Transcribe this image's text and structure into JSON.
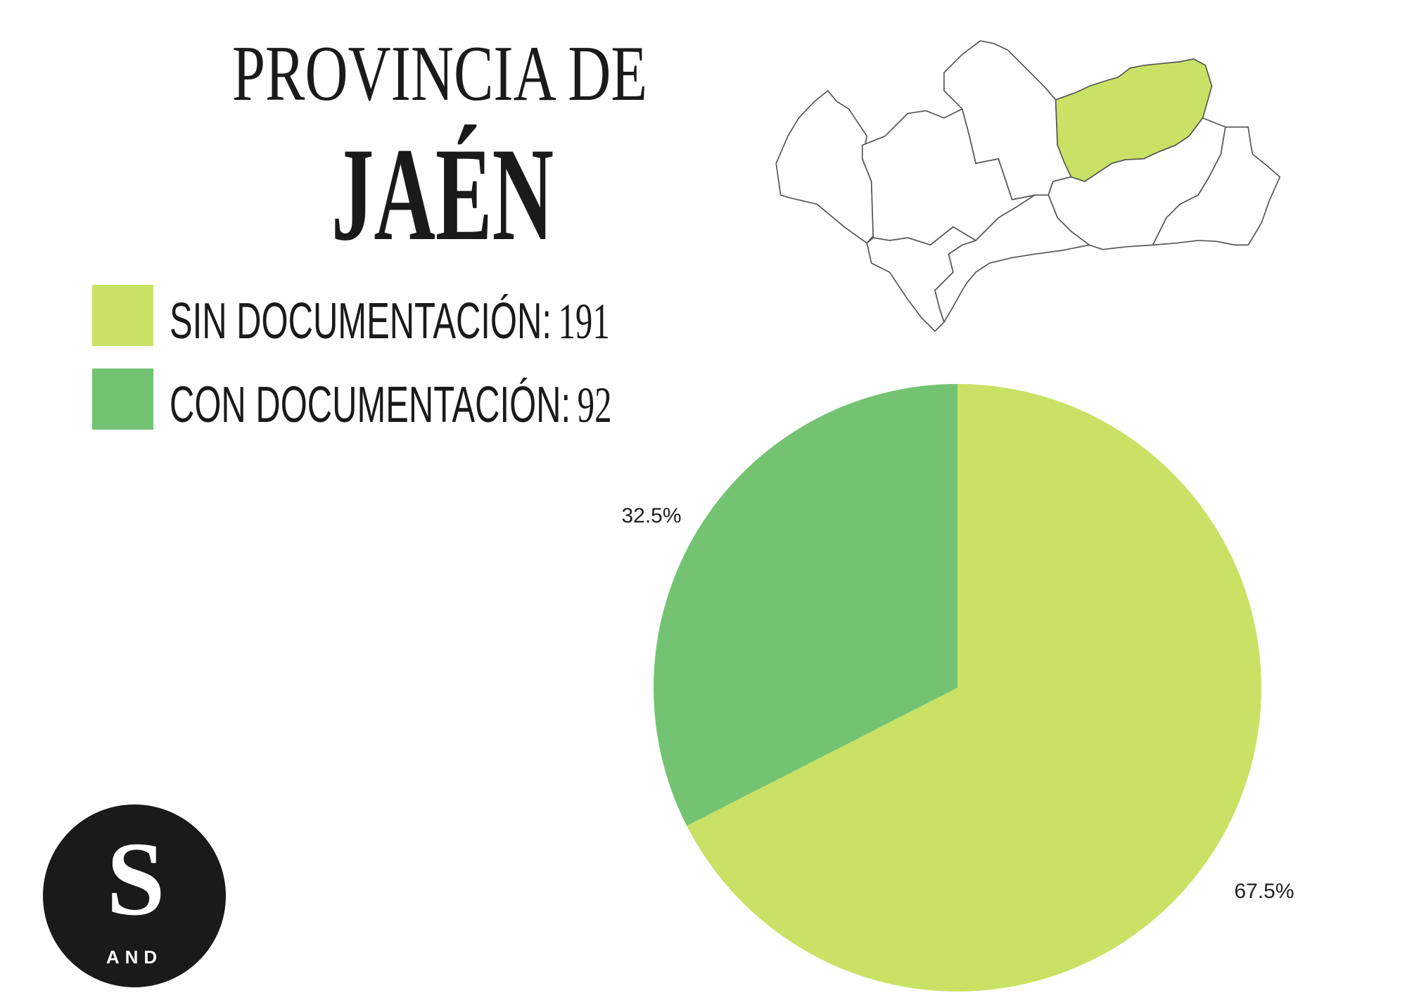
{
  "header": {
    "title_line1": "PROVINCIA DE",
    "title_line2": "JAÉN"
  },
  "legend": [
    {
      "label": "SIN DOCUMENTACIÓN:",
      "value": "191",
      "color": "#c9e265"
    },
    {
      "label": "CON DOCUMENTACIÓN:",
      "value": "92",
      "color": "#73c373"
    }
  ],
  "map": {
    "region": "Andalucía",
    "highlighted_province": "Jaén",
    "highlight_color": "#c9e265",
    "outline_color": "#555555"
  },
  "logo": {
    "letter": "S",
    "subtext": "AND"
  },
  "chart_data": {
    "type": "pie",
    "categories": [
      "SIN DOCUMENTACIÓN",
      "CON DOCUMENTACIÓN"
    ],
    "values": [
      191,
      92
    ],
    "percent_labels": [
      "67.5%",
      "32.5%"
    ],
    "colors": [
      "#c9e265",
      "#73c373"
    ],
    "start": "top",
    "direction": "clockwise"
  }
}
